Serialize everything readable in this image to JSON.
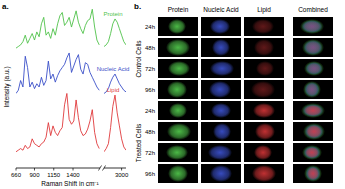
{
  "chart_data": [
    {
      "type": "line",
      "x_label": "Raman Shift in cm⁻¹",
      "y_label": "Intensity (a.u.)",
      "xlim": [
        660,
        1750
      ],
      "xticks": [
        660,
        900,
        1150,
        1400
      ],
      "ylim": [
        0,
        10
      ],
      "tick_labels": "x",
      "x": [
        660,
        690,
        720,
        750,
        780,
        810,
        840,
        870,
        900,
        930,
        960,
        990,
        1020,
        1050,
        1080,
        1110,
        1140,
        1170,
        1200,
        1230,
        1260,
        1290,
        1320,
        1350,
        1380,
        1410,
        1440,
        1470,
        1500,
        1530,
        1560,
        1590,
        1620,
        1650,
        1680,
        1710,
        1740
      ],
      "series": [
        {
          "name": "Protein",
          "color": "#4fc24a",
          "values": [
            7.4,
            7.5,
            7.6,
            7.8,
            8.2,
            7.7,
            8.0,
            8.3,
            7.9,
            8.4,
            8.1,
            8.9,
            9.3,
            8.2,
            8.4,
            8.0,
            8.6,
            8.2,
            8.9,
            9.4,
            9.6,
            8.8,
            9.0,
            9.3,
            8.7,
            9.2,
            9.7,
            9.0,
            8.6,
            8.3,
            8.8,
            9.1,
            9.2,
            9.8,
            8.7,
            7.9,
            7.6
          ]
        },
        {
          "name": "Nucleic Acid",
          "color": "#3a4fc8",
          "values": [
            4.6,
            4.8,
            5.4,
            5.0,
            6.9,
            6.2,
            5.0,
            5.3,
            4.9,
            5.2,
            5.0,
            5.6,
            5.1,
            5.4,
            6.6,
            5.5,
            5.8,
            5.3,
            5.7,
            6.0,
            6.2,
            6.4,
            6.8,
            7.1,
            5.9,
            6.3,
            6.7,
            7.0,
            6.1,
            5.8,
            6.5,
            6.4,
            5.9,
            5.6,
            5.3,
            5.0,
            4.8
          ]
        },
        {
          "name": "Lipid",
          "color": "#e0393b",
          "values": [
            1.0,
            1.1,
            1.2,
            1.1,
            1.4,
            1.2,
            1.3,
            1.8,
            1.5,
            1.4,
            1.3,
            1.5,
            1.6,
            1.9,
            2.8,
            2.0,
            2.6,
            2.2,
            2.0,
            2.3,
            2.5,
            3.9,
            4.6,
            3.0,
            2.7,
            2.9,
            4.2,
            3.1,
            2.3,
            2.0,
            2.1,
            2.4,
            2.9,
            3.6,
            2.2,
            1.5,
            1.2
          ]
        }
      ]
    },
    {
      "type": "line",
      "xlim": [
        2800,
        3050
      ],
      "xticks": [
        3000
      ],
      "ylim": [
        0,
        10
      ],
      "tick_labels": "x",
      "x": [
        2800,
        2825,
        2850,
        2875,
        2900,
        2925,
        2950,
        2975,
        3000,
        3025,
        3050
      ],
      "series": [
        {
          "color": "#4fc24a",
          "values": [
            7.5,
            7.6,
            7.8,
            8.3,
            8.9,
            9.2,
            9.0,
            8.6,
            8.2,
            7.8,
            7.6
          ]
        },
        {
          "color": "#3a4fc8",
          "values": [
            4.6,
            4.7,
            4.9,
            5.3,
            5.6,
            5.8,
            5.5,
            5.2,
            5.0,
            4.8,
            4.7
          ]
        },
        {
          "color": "#e0393b",
          "values": [
            1.0,
            1.2,
            1.5,
            2.5,
            3.8,
            4.5,
            3.4,
            2.6,
            1.8,
            1.3,
            1.1
          ]
        }
      ]
    }
  ],
  "panel_a": {
    "label": "a."
  },
  "panel_b": {
    "label": "b.",
    "columns": [
      {
        "label": "Protein",
        "color": "#4fc24a"
      },
      {
        "label": "Nucleic Acid",
        "color": "#3a4fc8"
      },
      {
        "label": "Lipid",
        "color": "#e0393b"
      },
      {
        "label": "Combined",
        "color": "#ffffff"
      }
    ],
    "groups": [
      {
        "label": "Control Cells",
        "rows": [
          "24h",
          "48h",
          "72h",
          "96h"
        ]
      },
      {
        "label": "Treated Cells",
        "rows": [
          "24h",
          "48h",
          "72h",
          "96h"
        ]
      }
    ]
  }
}
